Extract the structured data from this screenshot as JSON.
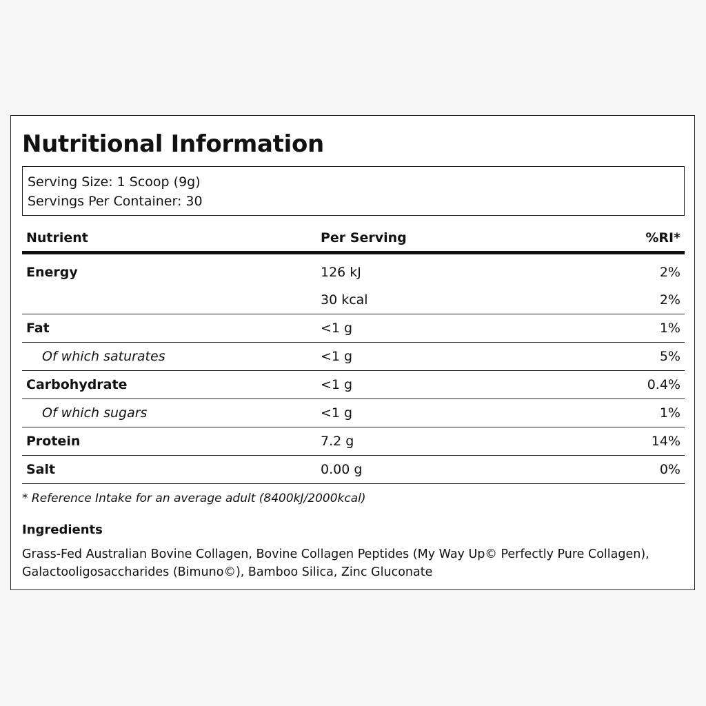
{
  "title": "Nutritional Information",
  "serving": {
    "size": "Serving Size: 1 Scoop (9g)",
    "per_container": "Servings Per Container: 30"
  },
  "table": {
    "headers": {
      "nutrient": "Nutrient",
      "per_serving": "Per Serving",
      "ri": "%RI*"
    },
    "rows": [
      {
        "nutrient": "Energy",
        "per_serving": "126 kJ",
        "ri": "2%"
      },
      {
        "nutrient": "",
        "per_serving": "30 kcal",
        "ri": "2%"
      },
      {
        "nutrient": "Fat",
        "per_serving": "<1 g",
        "ri": "1%"
      },
      {
        "nutrient": "Of which saturates",
        "per_serving": "<1 g",
        "ri": "5%"
      },
      {
        "nutrient": "Carbohydrate",
        "per_serving": "<1 g",
        "ri": "0.4%"
      },
      {
        "nutrient": "Of which sugars",
        "per_serving": "<1 g",
        "ri": "1%"
      },
      {
        "nutrient": "Protein",
        "per_serving": "7.2 g",
        "ri": "14%"
      },
      {
        "nutrient": "Salt",
        "per_serving": "0.00 g",
        "ri": "0%"
      }
    ]
  },
  "footnote": "* Reference Intake for an average adult (8400kJ/2000kcal)",
  "ingredients": {
    "heading": "Ingredients",
    "text": "Grass-Fed Australian Bovine Collagen, Bovine Collagen Peptides (My Way Up© Perfectly Pure Collagen), Galactooligosaccharides (Bimuno©), Bamboo Silica, Zinc Gluconate"
  }
}
